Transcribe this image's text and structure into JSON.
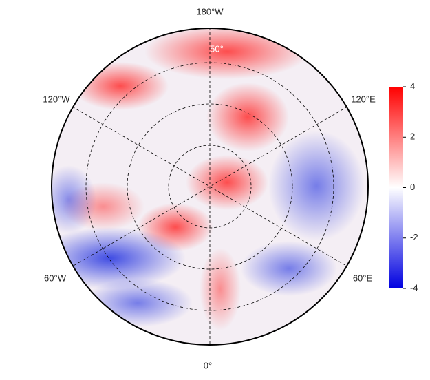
{
  "map": {
    "projection": "north polar stereographic",
    "lon_labels": {
      "top": "180°W",
      "upper_left": "120°W",
      "upper_right": "120°E",
      "lower_left": "60°W",
      "lower_right": "60°E",
      "bottom": "0°"
    },
    "lat_label": "50°"
  },
  "colorbar": {
    "lim": [
      -4,
      4
    ],
    "ticks": [
      4,
      2,
      0,
      -2,
      -4
    ],
    "colors": [
      "#0000e0",
      "#ffffff",
      "#ff0000"
    ]
  }
}
